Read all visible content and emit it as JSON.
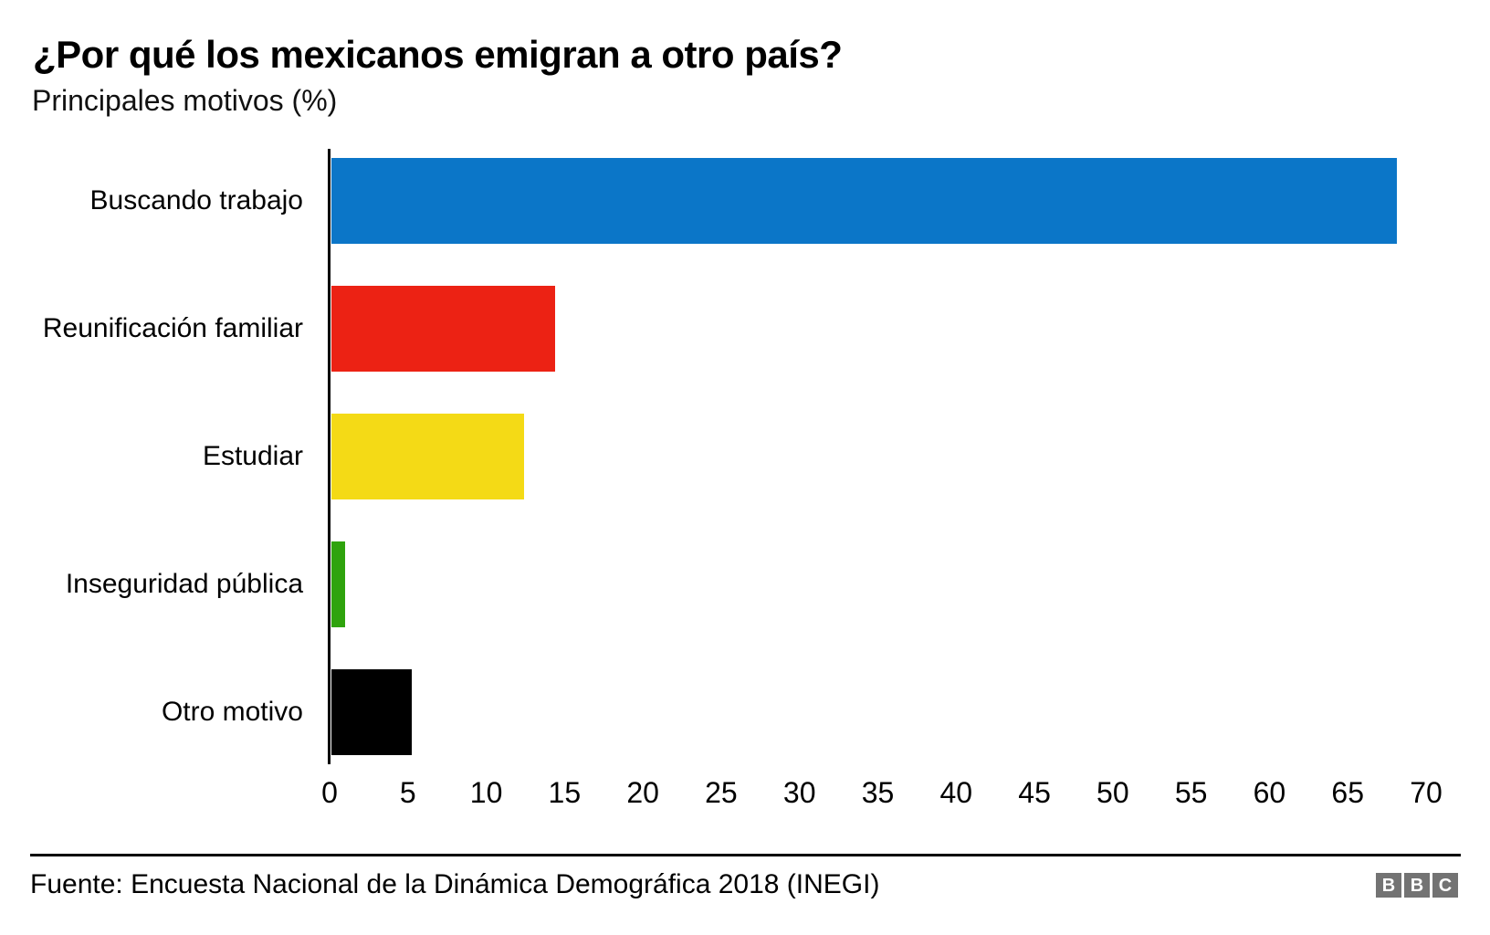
{
  "title": "¿Por qué los mexicanos emigran a otro país?",
  "subtitle": "Principales motivos (%)",
  "source": "Fuente: Encuesta Nacional de la Dinámica Demográfica 2018 (INEGI)",
  "logo": {
    "letters": [
      "B",
      "B",
      "C"
    ],
    "block_color": "#737373",
    "letter_color": "#ffffff"
  },
  "chart_data": {
    "type": "bar",
    "orientation": "horizontal",
    "title": "¿Por qué los mexicanos emigran a otro país?",
    "subtitle": "Principales motivos (%)",
    "xlabel": "",
    "ylabel": "",
    "categories": [
      "Buscando trabajo",
      "Reunificación familiar",
      "Estudiar",
      "Inseguridad pública",
      "Otro motivo"
    ],
    "values": [
      68,
      14.3,
      12.3,
      0.9,
      5.1
    ],
    "bar_colors": [
      "#0b76c8",
      "#ec2214",
      "#f4da16",
      "#2fa30d",
      "#000000"
    ],
    "xlim": [
      0,
      70
    ],
    "xticks": [
      0,
      5,
      10,
      15,
      20,
      25,
      30,
      35,
      40,
      45,
      50,
      55,
      60,
      65,
      70
    ],
    "grid": false,
    "legend": false,
    "axis_color": "#000000"
  }
}
